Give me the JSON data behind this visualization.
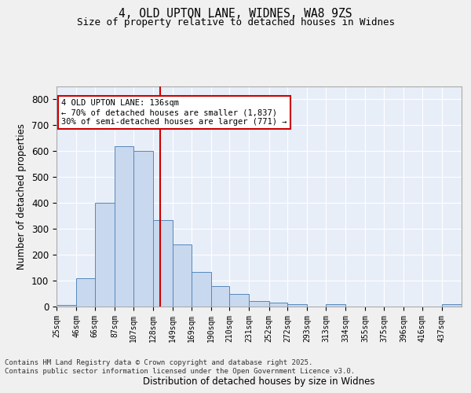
{
  "title_line1": "4, OLD UPTON LANE, WIDNES, WA8 9ZS",
  "title_line2": "Size of property relative to detached houses in Widnes",
  "xlabel": "Distribution of detached houses by size in Widnes",
  "ylabel": "Number of detached properties",
  "categories": [
    "25sqm",
    "46sqm",
    "66sqm",
    "87sqm",
    "107sqm",
    "128sqm",
    "149sqm",
    "169sqm",
    "190sqm",
    "210sqm",
    "231sqm",
    "252sqm",
    "272sqm",
    "293sqm",
    "313sqm",
    "334sqm",
    "355sqm",
    "375sqm",
    "396sqm",
    "416sqm",
    "437sqm"
  ],
  "bar_edges": [
    25,
    46,
    66,
    87,
    107,
    128,
    149,
    169,
    190,
    210,
    231,
    252,
    272,
    293,
    313,
    334,
    355,
    375,
    396,
    416,
    437,
    458
  ],
  "bar_heights": [
    7,
    110,
    400,
    620,
    600,
    335,
    240,
    135,
    78,
    48,
    20,
    15,
    8,
    0,
    8,
    0,
    0,
    0,
    0,
    0,
    8
  ],
  "bar_color": "#c8d8ee",
  "bar_edge_color": "#5588bb",
  "bg_color": "#e8eef8",
  "grid_color": "#ffffff",
  "fig_bg_color": "#f0f0f0",
  "vline_x": 136,
  "vline_color": "#cc0000",
  "annotation_text": "4 OLD UPTON LANE: 136sqm\n← 70% of detached houses are smaller (1,837)\n30% of semi-detached houses are larger (771) →",
  "annotation_box_color": "#cc0000",
  "footer_text": "Contains HM Land Registry data © Crown copyright and database right 2025.\nContains public sector information licensed under the Open Government Licence v3.0.",
  "ylim": [
    0,
    850
  ],
  "yticks": [
    0,
    100,
    200,
    300,
    400,
    500,
    600,
    700,
    800
  ]
}
